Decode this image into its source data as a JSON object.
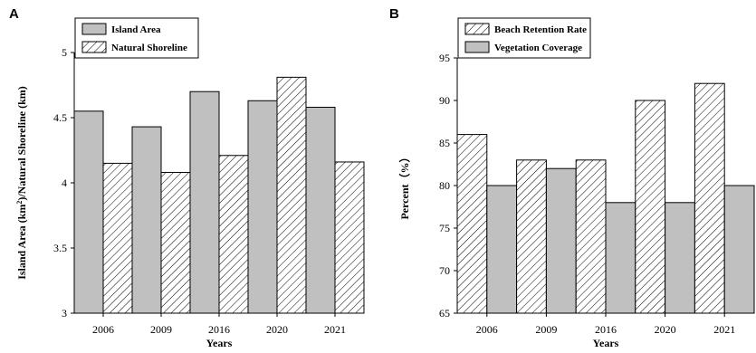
{
  "chart_data": [
    {
      "panel": "A",
      "type": "bar",
      "categories": [
        "2006",
        "2009",
        "2016",
        "2020",
        "2021"
      ],
      "series": [
        {
          "name": "Island Area",
          "values": [
            4.55,
            4.43,
            4.7,
            4.63,
            4.58
          ],
          "fill": "solid",
          "color": "#c0c0c0"
        },
        {
          "name": "Natural Shoreline",
          "values": [
            4.15,
            4.08,
            4.21,
            4.81,
            4.16
          ],
          "fill": "hatch",
          "color": "#ffffff"
        }
      ],
      "xlabel": "Years",
      "ylabel_parts": [
        "Island Area (km",
        "2",
        ")/Natural Shoreline (km)"
      ],
      "ylim": [
        3,
        5
      ],
      "yticks": [
        3,
        3.5,
        4,
        4.5,
        5
      ],
      "ytick_labels": [
        "3",
        "3.5",
        "4",
        "4.5",
        "5"
      ],
      "legend": "top-left",
      "grid": false
    },
    {
      "panel": "B",
      "type": "bar",
      "categories": [
        "2006",
        "2009",
        "2016",
        "2020",
        "2021"
      ],
      "series": [
        {
          "name": "Beach Retention Rate",
          "values": [
            86,
            83,
            83,
            90,
            92
          ],
          "fill": "hatch",
          "color": "#ffffff"
        },
        {
          "name": "Vegetation Coverage",
          "values": [
            80,
            82,
            78,
            78,
            80
          ],
          "fill": "solid",
          "color": "#c0c0c0"
        }
      ],
      "xlabel": "Years",
      "ylabel": "Percent（%）",
      "ylim": [
        65,
        95
      ],
      "yticks": [
        65,
        70,
        75,
        80,
        85,
        90,
        95
      ],
      "ytick_labels": [
        "65",
        "70",
        "75",
        "80",
        "85",
        "90",
        "95"
      ],
      "legend": "top-left",
      "grid": false
    }
  ]
}
